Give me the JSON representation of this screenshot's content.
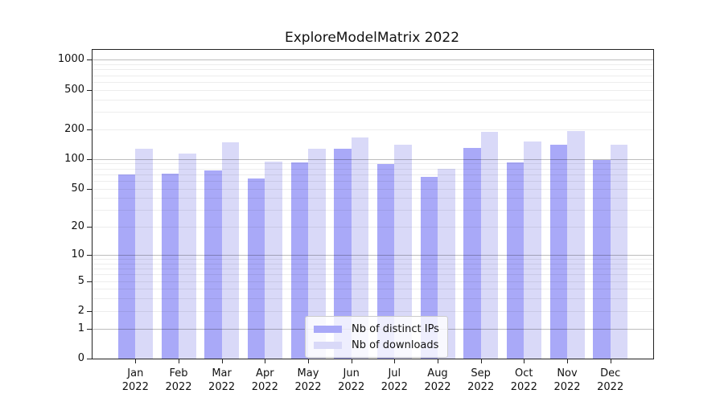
{
  "chart_data": {
    "type": "bar",
    "title": "ExploreModelMatrix 2022",
    "year": "2022",
    "categories": [
      "Jan",
      "Feb",
      "Mar",
      "Apr",
      "May",
      "Jun",
      "Jul",
      "Aug",
      "Sep",
      "Oct",
      "Nov",
      "Dec"
    ],
    "series": [
      {
        "name": "Nb of distinct IPs",
        "color": "#a9a9f8",
        "values": [
          70,
          71,
          76,
          63,
          93,
          128,
          89,
          66,
          130,
          93,
          140,
          98
        ]
      },
      {
        "name": "Nb of downloads",
        "color": "#d9d9f8",
        "values": [
          126,
          114,
          148,
          94,
          127,
          165,
          139,
          80,
          188,
          151,
          193,
          139
        ]
      }
    ],
    "xlabel": "",
    "ylabel": "",
    "yscale": "log1p",
    "yticks": [
      0,
      1,
      2,
      5,
      10,
      20,
      50,
      100,
      200,
      500,
      1000
    ],
    "ylim": [
      0,
      1258
    ],
    "grid": "both",
    "legend_position": "lower center"
  }
}
